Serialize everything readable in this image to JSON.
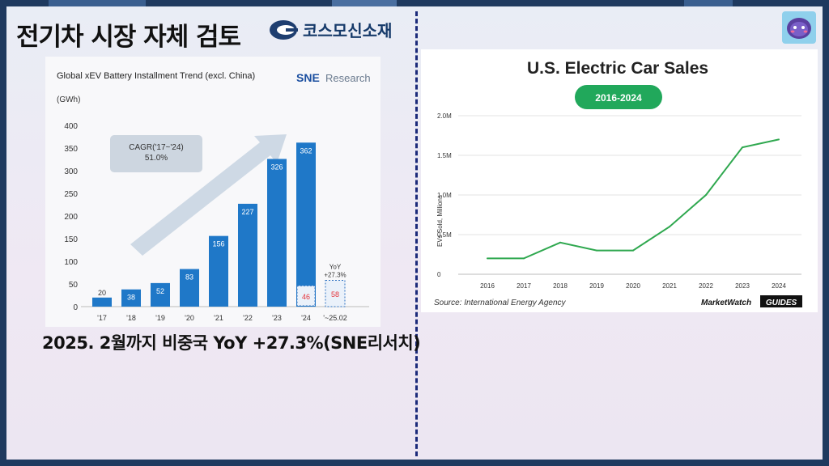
{
  "page": {
    "title": "전기차 시장 자체 검토",
    "company": "코스모신소재",
    "caption": "2025. 2월까지 비중국 YoY +27.3%(SNE리서치)"
  },
  "colors": {
    "frame": "#1f3a5f",
    "bar": "#1f78c8",
    "line": "#2fa84f",
    "badge": "#21a85b",
    "arrow": "#c7d3e0",
    "highlight": "#e5343b"
  },
  "chart_data": [
    {
      "type": "bar",
      "title": "Global xEV Battery Installment Trend (excl. China)",
      "brand": "SNE Research",
      "brand_prefix": "SNE",
      "brand_suffix": "Research",
      "ylabel": "(GWh)",
      "ylim": [
        0,
        400
      ],
      "yticks": [
        "400",
        "350",
        "300",
        "250",
        "200",
        "150",
        "100",
        "50",
        "0"
      ],
      "categories": [
        "'17",
        "'18",
        "'19",
        "'20",
        "'21",
        "'22",
        "'23",
        "'24",
        "'~25.02"
      ],
      "values": [
        20,
        38,
        52,
        83,
        156,
        227,
        326,
        362,
        null
      ],
      "labels": [
        "20",
        "38",
        "52",
        "83",
        "156",
        "227",
        "326",
        "362",
        ""
      ],
      "highlight": {
        "category": "'24",
        "value": 46,
        "label": "46"
      },
      "last_bar": {
        "category": "'~25.02",
        "value": 58,
        "label": "58",
        "note_line1": "YoY",
        "note_line2": "+27.3%"
      },
      "annotation_line1": "CAGR('17~'24)",
      "annotation_line2": "51.0%"
    },
    {
      "type": "line",
      "title": "U.S. Electric Car Sales",
      "badge": "2016-2024",
      "ylabel": "EVs Sold, Millions",
      "yticks": [
        "2.0M",
        "1.5M",
        "1.0M",
        "0.5M",
        "0"
      ],
      "ylim": [
        0,
        2.0
      ],
      "x": [
        "2016",
        "2017",
        "2018",
        "2019",
        "2020",
        "2021",
        "2022",
        "2023",
        "2024"
      ],
      "values": [
        0.2,
        0.2,
        0.4,
        0.3,
        0.3,
        0.6,
        1.0,
        1.6,
        1.7
      ],
      "source": "Source: International Energy Agency",
      "brand_left": "MarketWatch",
      "brand_right": "GUIDES"
    }
  ]
}
